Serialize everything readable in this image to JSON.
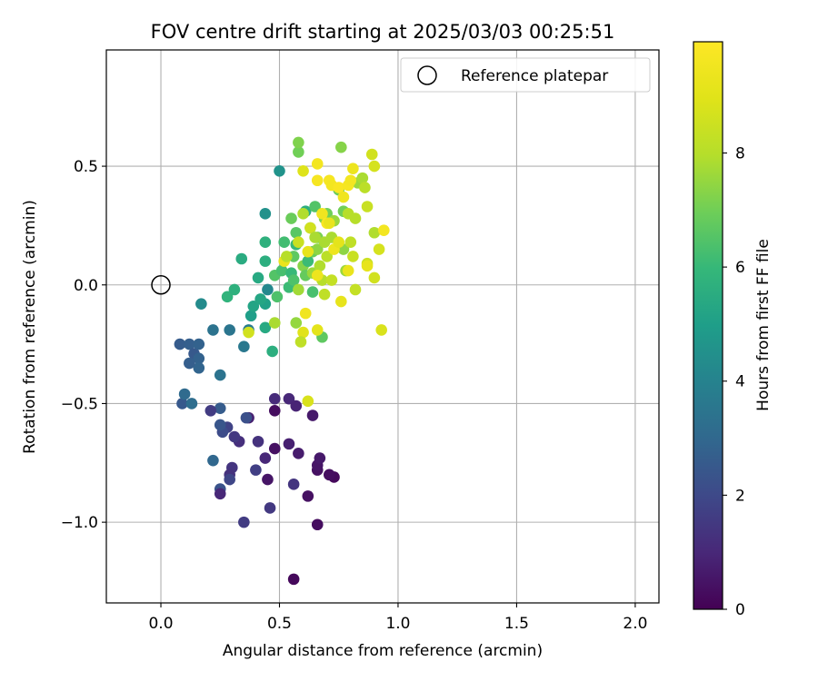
{
  "chart_data": {
    "type": "scatter",
    "title": "FOV centre drift starting at 2025/03/03 00:25:51",
    "xlabel": "Angular distance from reference (arcmin)",
    "ylabel": "Rotation from reference (arcmin)",
    "xlim": [
      -0.23,
      2.1
    ],
    "ylim": [
      -1.34,
      0.99
    ],
    "xticks": [
      0.0,
      0.5,
      1.0,
      1.5,
      2.0
    ],
    "xtick_labels": [
      "0.0",
      "0.5",
      "1.0",
      "1.5",
      "2.0"
    ],
    "yticks": [
      -1.0,
      -0.5,
      0.0,
      0.5
    ],
    "ytick_labels": [
      "−1.0",
      "−0.5",
      "0.0",
      "0.5"
    ],
    "grid": true,
    "legend": {
      "placement": "top-right",
      "label": "Reference platepar"
    },
    "reference_point": {
      "x": 0.0,
      "y": 0.0
    },
    "colorbar": {
      "label": "Hours from first FF file",
      "range": [
        0,
        9.95
      ],
      "ticks": [
        0,
        2,
        4,
        6,
        8
      ],
      "tick_labels": [
        "0",
        "2",
        "4",
        "6",
        "8"
      ],
      "colormap": "viridis"
    },
    "series": [
      {
        "points": [
          {
            "x": 0.56,
            "y": -1.24,
            "h": 0.2
          },
          {
            "x": 0.66,
            "y": -1.01,
            "h": 0.3
          },
          {
            "x": 0.62,
            "y": -0.89,
            "h": 0.4
          },
          {
            "x": 0.73,
            "y": -0.81,
            "h": 0.2
          },
          {
            "x": 0.71,
            "y": -0.8,
            "h": 0.3
          },
          {
            "x": 0.66,
            "y": -0.78,
            "h": 0.4
          },
          {
            "x": 0.66,
            "y": -0.76,
            "h": 0.5
          },
          {
            "x": 0.67,
            "y": -0.73,
            "h": 0.6
          },
          {
            "x": 0.58,
            "y": -0.71,
            "h": 0.7
          },
          {
            "x": 0.54,
            "y": -0.67,
            "h": 0.8
          },
          {
            "x": 0.48,
            "y": -0.69,
            "h": 0.4
          },
          {
            "x": 0.44,
            "y": -0.73,
            "h": 1.0
          },
          {
            "x": 0.45,
            "y": -0.82,
            "h": 0.5
          },
          {
            "x": 0.56,
            "y": -0.84,
            "h": 1.4
          },
          {
            "x": 0.46,
            "y": -0.94,
            "h": 1.5
          },
          {
            "x": 0.35,
            "y": -1.0,
            "h": 1.6
          },
          {
            "x": 0.4,
            "y": -0.78,
            "h": 1.7
          },
          {
            "x": 0.41,
            "y": -0.66,
            "h": 1.3
          },
          {
            "x": 0.48,
            "y": -0.53,
            "h": 0.3
          },
          {
            "x": 0.48,
            "y": -0.48,
            "h": 1.1
          },
          {
            "x": 0.54,
            "y": -0.48,
            "h": 1.0
          },
          {
            "x": 0.57,
            "y": -0.51,
            "h": 0.9
          },
          {
            "x": 0.64,
            "y": -0.55,
            "h": 0.6
          },
          {
            "x": 0.37,
            "y": -0.56,
            "h": 0.8
          },
          {
            "x": 0.36,
            "y": -0.56,
            "h": 2.2
          },
          {
            "x": 0.33,
            "y": -0.66,
            "h": 1.2
          },
          {
            "x": 0.31,
            "y": -0.64,
            "h": 1.5
          },
          {
            "x": 0.28,
            "y": -0.6,
            "h": 1.8
          },
          {
            "x": 0.3,
            "y": -0.77,
            "h": 1.4
          },
          {
            "x": 0.29,
            "y": -0.8,
            "h": 1.3
          },
          {
            "x": 0.29,
            "y": -0.82,
            "h": 1.9
          },
          {
            "x": 0.25,
            "y": -0.86,
            "h": 2.3
          },
          {
            "x": 0.25,
            "y": -0.88,
            "h": 1.0
          },
          {
            "x": 0.22,
            "y": -0.74,
            "h": 3.0
          },
          {
            "x": 0.26,
            "y": -0.62,
            "h": 2.1
          },
          {
            "x": 0.25,
            "y": -0.59,
            "h": 2.4
          },
          {
            "x": 0.25,
            "y": -0.52,
            "h": 2.6
          },
          {
            "x": 0.21,
            "y": -0.53,
            "h": 1.6
          },
          {
            "x": 0.09,
            "y": -0.5,
            "h": 2.5
          },
          {
            "x": 0.1,
            "y": -0.46,
            "h": 3.1
          },
          {
            "x": 0.13,
            "y": -0.5,
            "h": 3.2
          },
          {
            "x": 0.25,
            "y": -0.38,
            "h": 3.4
          },
          {
            "x": 0.08,
            "y": -0.25,
            "h": 2.6
          },
          {
            "x": 0.12,
            "y": -0.25,
            "h": 2.7
          },
          {
            "x": 0.14,
            "y": -0.29,
            "h": 2.5
          },
          {
            "x": 0.16,
            "y": -0.31,
            "h": 2.8
          },
          {
            "x": 0.16,
            "y": -0.35,
            "h": 2.9
          },
          {
            "x": 0.12,
            "y": -0.33,
            "h": 2.7
          },
          {
            "x": 0.16,
            "y": -0.25,
            "h": 2.8
          },
          {
            "x": 0.22,
            "y": -0.19,
            "h": 3.4
          },
          {
            "x": 0.29,
            "y": -0.19,
            "h": 3.5
          },
          {
            "x": 0.35,
            "y": -0.26,
            "h": 3.6
          },
          {
            "x": 0.37,
            "y": -0.19,
            "h": 3.7
          },
          {
            "x": 0.38,
            "y": -0.13,
            "h": 5.0
          },
          {
            "x": 0.39,
            "y": -0.09,
            "h": 5.2
          },
          {
            "x": 0.44,
            "y": -0.08,
            "h": 5.1
          },
          {
            "x": 0.42,
            "y": -0.06,
            "h": 5.3
          },
          {
            "x": 0.45,
            "y": -0.02,
            "h": 4.2
          },
          {
            "x": 0.44,
            "y": -0.18,
            "h": 5.4
          },
          {
            "x": 0.47,
            "y": -0.28,
            "h": 5.6
          },
          {
            "x": 0.48,
            "y": -0.16,
            "h": 7.8
          },
          {
            "x": 0.37,
            "y": -0.2,
            "h": 8.6
          },
          {
            "x": 0.17,
            "y": -0.08,
            "h": 4.3
          },
          {
            "x": 0.28,
            "y": -0.05,
            "h": 5.8
          },
          {
            "x": 0.31,
            "y": -0.02,
            "h": 5.7
          },
          {
            "x": 0.34,
            "y": 0.11,
            "h": 5.5
          },
          {
            "x": 0.41,
            "y": 0.03,
            "h": 5.4
          },
          {
            "x": 0.44,
            "y": 0.1,
            "h": 5.6
          },
          {
            "x": 0.44,
            "y": 0.18,
            "h": 5.7
          },
          {
            "x": 0.44,
            "y": 0.3,
            "h": 4.5
          },
          {
            "x": 0.5,
            "y": 0.48,
            "h": 4.6
          },
          {
            "x": 0.48,
            "y": 0.04,
            "h": 6.5
          },
          {
            "x": 0.49,
            "y": -0.05,
            "h": 6.4
          },
          {
            "x": 0.51,
            "y": 0.06,
            "h": 6.3
          },
          {
            "x": 0.52,
            "y": 0.18,
            "h": 6.2
          },
          {
            "x": 0.54,
            "y": -0.01,
            "h": 6.1
          },
          {
            "x": 0.55,
            "y": 0.05,
            "h": 6.0
          },
          {
            "x": 0.55,
            "y": 0.28,
            "h": 6.9
          },
          {
            "x": 0.56,
            "y": 0.12,
            "h": 6.7
          },
          {
            "x": 0.56,
            "y": 0.02,
            "h": 6.4
          },
          {
            "x": 0.57,
            "y": 0.17,
            "h": 6.0
          },
          {
            "x": 0.57,
            "y": 0.22,
            "h": 6.6
          },
          {
            "x": 0.58,
            "y": 0.56,
            "h": 7.0
          },
          {
            "x": 0.58,
            "y": 0.6,
            "h": 7.2
          },
          {
            "x": 0.57,
            "y": -0.16,
            "h": 7.5
          },
          {
            "x": 0.58,
            "y": -0.02,
            "h": 7.7
          },
          {
            "x": 0.6,
            "y": 0.08,
            "h": 7.3
          },
          {
            "x": 0.61,
            "y": 0.04,
            "h": 6.8
          },
          {
            "x": 0.61,
            "y": 0.31,
            "h": 5.6
          },
          {
            "x": 0.62,
            "y": 0.1,
            "h": 6.1
          },
          {
            "x": 0.63,
            "y": 0.24,
            "h": 6.8
          },
          {
            "x": 0.64,
            "y": 0.14,
            "h": 6.9
          },
          {
            "x": 0.64,
            "y": 0.05,
            "h": 7.6
          },
          {
            "x": 0.64,
            "y": -0.03,
            "h": 6.3
          },
          {
            "x": 0.65,
            "y": 0.33,
            "h": 6.5
          },
          {
            "x": 0.66,
            "y": 0.2,
            "h": 7.1
          },
          {
            "x": 0.66,
            "y": 0.15,
            "h": 7.4
          },
          {
            "x": 0.67,
            "y": 0.08,
            "h": 7.9
          },
          {
            "x": 0.68,
            "y": 0.02,
            "h": 8.0
          },
          {
            "x": 0.68,
            "y": -0.22,
            "h": 6.7
          },
          {
            "x": 0.69,
            "y": 0.18,
            "h": 7.8
          },
          {
            "x": 0.69,
            "y": 0.28,
            "h": 7.2
          },
          {
            "x": 0.7,
            "y": 0.3,
            "h": 7.0
          },
          {
            "x": 0.7,
            "y": 0.12,
            "h": 8.1
          },
          {
            "x": 0.69,
            "y": -0.04,
            "h": 8.2
          },
          {
            "x": 0.72,
            "y": 0.02,
            "h": 8.3
          },
          {
            "x": 0.72,
            "y": 0.2,
            "h": 7.8
          },
          {
            "x": 0.73,
            "y": 0.27,
            "h": 7.6
          },
          {
            "x": 0.75,
            "y": 0.4,
            "h": 6.9
          },
          {
            "x": 0.76,
            "y": 0.58,
            "h": 7.3
          },
          {
            "x": 0.77,
            "y": 0.31,
            "h": 7.0
          },
          {
            "x": 0.77,
            "y": 0.15,
            "h": 7.4
          },
          {
            "x": 0.78,
            "y": 0.06,
            "h": 7.6
          },
          {
            "x": 0.79,
            "y": 0.3,
            "h": 8.0
          },
          {
            "x": 0.8,
            "y": 0.18,
            "h": 8.2
          },
          {
            "x": 0.81,
            "y": 0.12,
            "h": 8.4
          },
          {
            "x": 0.82,
            "y": 0.28,
            "h": 8.0
          },
          {
            "x": 0.82,
            "y": -0.02,
            "h": 8.3
          },
          {
            "x": 0.83,
            "y": 0.43,
            "h": 7.6
          },
          {
            "x": 0.85,
            "y": 0.45,
            "h": 7.8
          },
          {
            "x": 0.86,
            "y": 0.41,
            "h": 8.1
          },
          {
            "x": 0.87,
            "y": 0.33,
            "h": 8.4
          },
          {
            "x": 0.87,
            "y": 0.09,
            "h": 8.5
          },
          {
            "x": 0.89,
            "y": 0.55,
            "h": 8.6
          },
          {
            "x": 0.9,
            "y": 0.5,
            "h": 8.7
          },
          {
            "x": 0.9,
            "y": 0.22,
            "h": 7.9
          },
          {
            "x": 0.9,
            "y": 0.03,
            "h": 8.6
          },
          {
            "x": 0.92,
            "y": 0.15,
            "h": 8.7
          },
          {
            "x": 0.93,
            "y": -0.19,
            "h": 8.8
          },
          {
            "x": 0.6,
            "y": 0.48,
            "h": 8.9
          },
          {
            "x": 0.66,
            "y": 0.51,
            "h": 9.6
          },
          {
            "x": 0.66,
            "y": 0.44,
            "h": 9.7
          },
          {
            "x": 0.68,
            "y": 0.3,
            "h": 9.5
          },
          {
            "x": 0.7,
            "y": 0.26,
            "h": 9.8
          },
          {
            "x": 0.71,
            "y": 0.44,
            "h": 9.7
          },
          {
            "x": 0.72,
            "y": 0.42,
            "h": 9.6
          },
          {
            "x": 0.73,
            "y": 0.15,
            "h": 9.4
          },
          {
            "x": 0.75,
            "y": 0.41,
            "h": 9.8
          },
          {
            "x": 0.77,
            "y": 0.37,
            "h": 9.5
          },
          {
            "x": 0.79,
            "y": 0.42,
            "h": 9.7
          },
          {
            "x": 0.8,
            "y": 0.44,
            "h": 9.6
          },
          {
            "x": 0.81,
            "y": 0.49,
            "h": 9.4
          },
          {
            "x": 0.79,
            "y": 0.06,
            "h": 9.3
          },
          {
            "x": 0.76,
            "y": -0.07,
            "h": 9.2
          },
          {
            "x": 0.75,
            "y": 0.18,
            "h": 9.1
          },
          {
            "x": 0.71,
            "y": 0.26,
            "h": 9.3
          },
          {
            "x": 0.66,
            "y": 0.04,
            "h": 9.4
          },
          {
            "x": 0.62,
            "y": 0.14,
            "h": 9.2
          },
          {
            "x": 0.61,
            "y": -0.12,
            "h": 9.5
          },
          {
            "x": 0.6,
            "y": -0.2,
            "h": 9.0
          },
          {
            "x": 0.66,
            "y": -0.19,
            "h": 9.1
          },
          {
            "x": 0.52,
            "y": 0.1,
            "h": 9.3
          },
          {
            "x": 0.63,
            "y": 0.24,
            "h": 8.6
          },
          {
            "x": 0.94,
            "y": 0.23,
            "h": 9.6
          },
          {
            "x": 0.87,
            "y": 0.08,
            "h": 9.2
          },
          {
            "x": 0.62,
            "y": -0.49,
            "h": 8.8
          },
          {
            "x": 0.58,
            "y": 0.18,
            "h": 8.4
          },
          {
            "x": 0.59,
            "y": -0.24,
            "h": 8.2
          },
          {
            "x": 0.53,
            "y": 0.12,
            "h": 8.0
          },
          {
            "x": 0.6,
            "y": 0.3,
            "h": 7.9
          },
          {
            "x": 0.65,
            "y": 0.2,
            "h": 7.8
          }
        ]
      }
    ]
  }
}
